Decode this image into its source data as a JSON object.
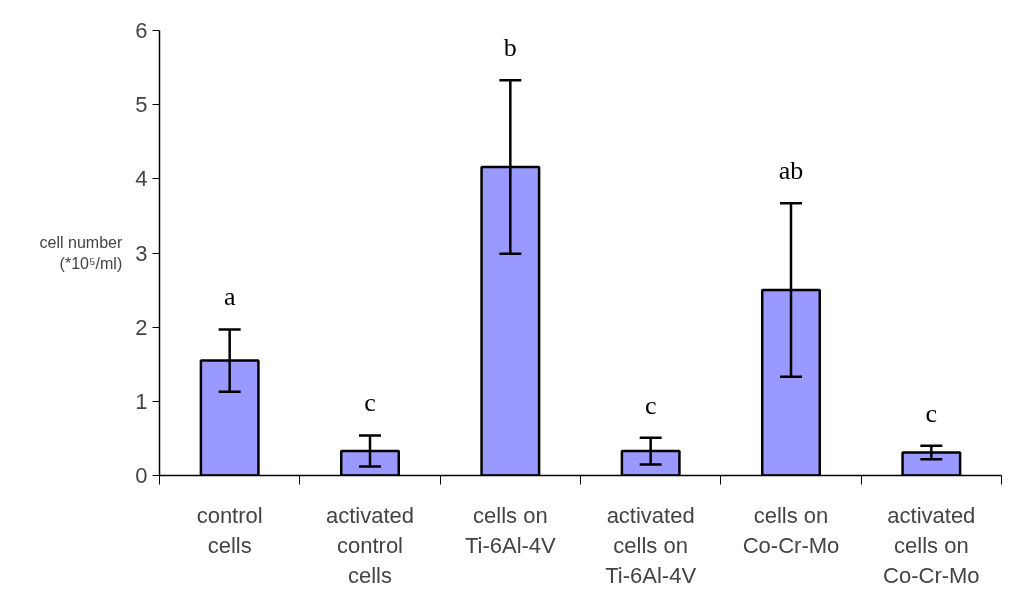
{
  "chart_data": {
    "type": "bar",
    "ylabel": "cell number\n(*10⁵/ml)",
    "categories": [
      "control\ncells",
      "activated\ncontrol\ncells",
      "cells on\nTi-6Al-4V",
      "activated\ncells on\nTi-6Al-4V",
      "cells on\nCo-Cr-Mo",
      "activated\ncells on\nCo-Cr-Mo"
    ],
    "values": [
      1.55,
      0.33,
      4.16,
      0.33,
      2.5,
      0.31
    ],
    "errors": [
      0.42,
      0.21,
      1.17,
      0.18,
      1.17,
      0.09
    ],
    "color": "#9999ff",
    "ylim": [
      0,
      6
    ],
    "yticks": [
      0,
      1,
      2,
      3,
      4,
      5,
      6
    ],
    "grid": false,
    "annotations": [
      "a",
      "c",
      "b",
      "c",
      "ab",
      "c"
    ]
  }
}
